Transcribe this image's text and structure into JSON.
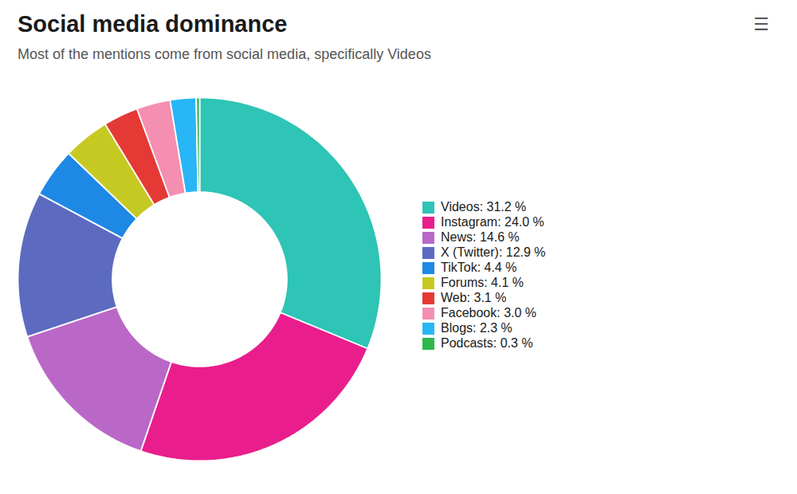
{
  "chart_data": {
    "type": "pie",
    "title": "Social media dominance",
    "subtitle": "Most of the mentions come from social media, specifically Videos",
    "categories": [
      "Videos: 31.2 %",
      "Instagram: 24.0 %",
      "News: 14.6 %",
      "X (Twitter): 12.9 %",
      "TikTok: 4.4 %",
      "Forums: 4.1 %",
      "Web: 3.1 %",
      "Facebook: 3.0 %",
      "Blogs: 2.3 %",
      "Podcasts: 0.3 %"
    ],
    "values": [
      31.2,
      24.0,
      14.6,
      12.9,
      4.4,
      4.1,
      3.1,
      3.0,
      2.3,
      0.3
    ],
    "colors": [
      "#2EC4B6",
      "#E91E8C",
      "#BA68C8",
      "#5C6BC0",
      "#1E88E5",
      "#C6C922",
      "#E53935",
      "#F48FB1",
      "#29B6F6",
      "#2DB84B"
    ],
    "legend": "right",
    "annotations": [
      "☰"
    ]
  }
}
